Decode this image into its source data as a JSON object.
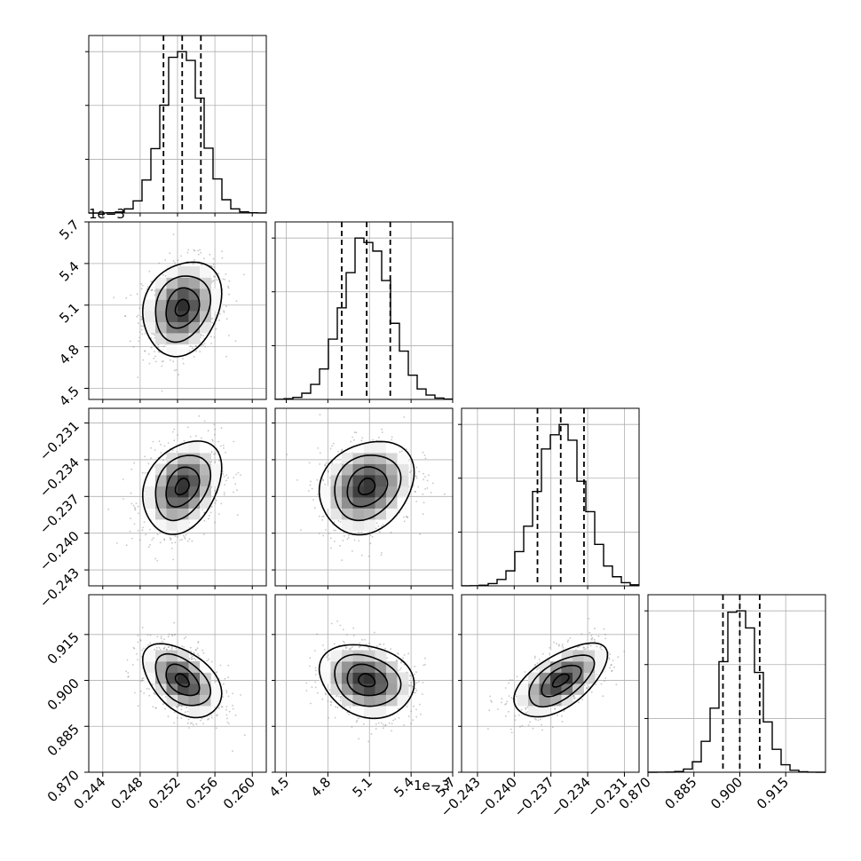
{
  "chart_data": {
    "type": "corner",
    "style": {
      "grid": true,
      "quantile_lines": "dashed",
      "histogram_color": "#000000",
      "contour_color": "#000000",
      "scatter_color": "#808080"
    },
    "parameters": [
      {
        "range": [
          0.2425,
          0.2615
        ],
        "ticks": [
          0.244,
          0.248,
          0.252,
          0.256,
          0.26
        ],
        "tick_labels": [
          "0.244",
          "0.248",
          "0.252",
          "0.256",
          "0.260"
        ],
        "offset_text": "",
        "quantiles": [
          0.2505,
          0.2525,
          0.2545
        ],
        "hist_center": 0.2525,
        "hist_sigma": 0.0021
      },
      {
        "range": [
          4.42,
          5.7
        ],
        "ticks": [
          4.5,
          4.8,
          5.1,
          5.4,
          5.7
        ],
        "tick_labels": [
          "4.5",
          "4.8",
          "5.1",
          "5.4",
          "5.7"
        ],
        "offset_text": "1e−3",
        "quantiles": [
          4.9,
          5.08,
          5.25
        ],
        "hist_center": 5.08,
        "hist_sigma": 0.17
      },
      {
        "range": [
          -0.2443,
          -0.2298
        ],
        "ticks": [
          -0.243,
          -0.24,
          -0.237,
          -0.234,
          -0.231
        ],
        "tick_labels": [
          "−0.243",
          "−0.240",
          "−0.237",
          "−0.234",
          "−0.231"
        ],
        "offset_text": "",
        "quantiles": [
          -0.2381,
          -0.2362,
          -0.2343
        ],
        "hist_center": -0.2362,
        "hist_sigma": 0.0019
      },
      {
        "range": [
          0.87,
          0.928
        ],
        "ticks": [
          0.87,
          0.885,
          0.9,
          0.915
        ],
        "tick_labels": [
          "0.870",
          "0.885",
          "0.900",
          "0.915"
        ],
        "offset_text": "",
        "quantiles": [
          0.8945,
          0.9,
          0.9065
        ],
        "hist_center": 0.9,
        "hist_sigma": 0.006
      }
    ],
    "correlations": [
      {
        "pair": [
          0,
          1
        ],
        "rho": 0.2
      },
      {
        "pair": [
          0,
          2
        ],
        "rho": 0.3
      },
      {
        "pair": [
          1,
          2
        ],
        "rho": 0.2
      },
      {
        "pair": [
          0,
          3
        ],
        "rho": -0.45
      },
      {
        "pair": [
          1,
          3
        ],
        "rho": -0.2
      },
      {
        "pair": [
          2,
          3
        ],
        "rho": 0.6
      }
    ]
  }
}
